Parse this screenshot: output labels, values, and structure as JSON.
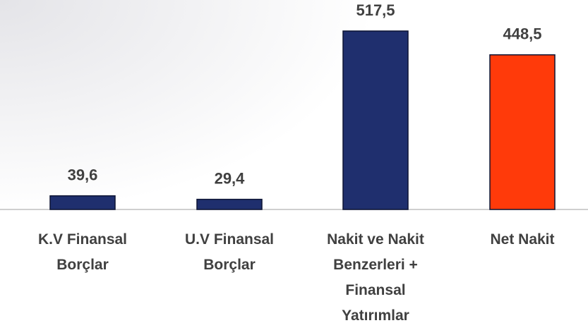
{
  "chart_data": {
    "type": "bar",
    "categories": [
      "K.V Finansal Borçlar",
      "U.V Finansal Borçlar",
      "Nakit ve Nakit Benzerleri + Finansal Yatırımlar",
      "Net Nakit"
    ],
    "values": [
      39.6,
      29.4,
      517.5,
      448.5
    ],
    "value_labels": [
      "39,6",
      "29,4",
      "517,5",
      "448,5"
    ],
    "colors": [
      "#1f2f6e",
      "#1f2f6e",
      "#1f2f6e",
      "#ff3a0a"
    ]
  }
}
